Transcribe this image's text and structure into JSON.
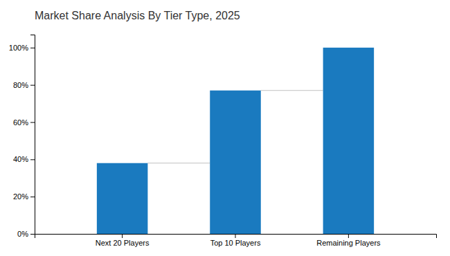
{
  "chart_data": {
    "type": "bar",
    "title": "Market Share Analysis By Tier Type, 2025",
    "categories": [
      "Next 20 Players",
      "Top 10 Players",
      "Remaining Players"
    ],
    "values": [
      38,
      77,
      100
    ],
    "color": "#1a7abf",
    "ylim": [
      0,
      107
    ],
    "yticks": [
      {
        "value": 0,
        "label": "0%"
      },
      {
        "value": 20,
        "label": "20%"
      },
      {
        "value": 40,
        "label": "40%"
      },
      {
        "value": 60,
        "label": "60%"
      },
      {
        "value": 80,
        "label": "80%"
      },
      {
        "value": 100,
        "label": "100%"
      }
    ],
    "grid": false
  }
}
